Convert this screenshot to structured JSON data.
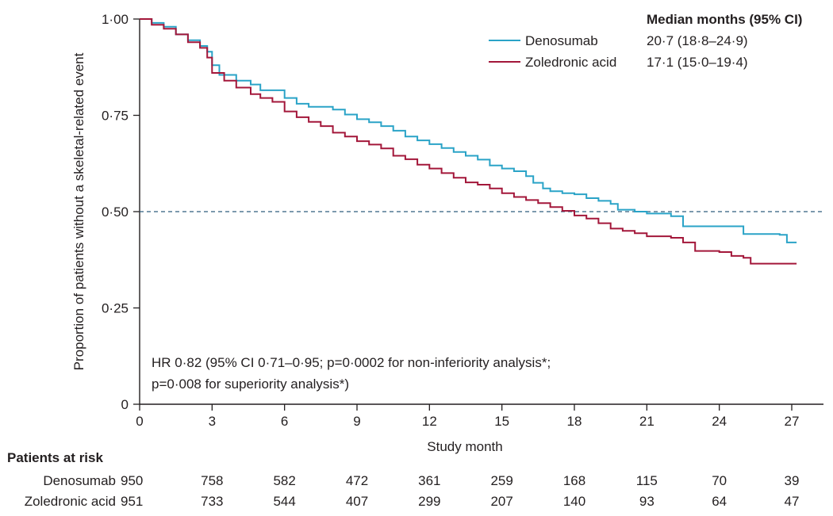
{
  "chart_data": {
    "type": "line",
    "subtype": "kaplan-meier",
    "xlabel": "Study month",
    "ylabel": "Proportion of patients without a skeletal-related event",
    "xlim": [
      0,
      28.2
    ],
    "ylim": [
      0,
      1.0
    ],
    "xticks": [
      0,
      3,
      6,
      9,
      12,
      15,
      18,
      21,
      24,
      27
    ],
    "yticks": [
      {
        "value": 0,
        "label": "0"
      },
      {
        "value": 0.25,
        "label": "0·25"
      },
      {
        "value": 0.5,
        "label": "0·50"
      },
      {
        "value": 0.75,
        "label": "0·75"
      },
      {
        "value": 1.0,
        "label": "1·00"
      }
    ],
    "reference_line": {
      "y": 0.5,
      "style": "dashed",
      "color": "#2e5e7e"
    },
    "legend_header": "Median months (95% CI)",
    "legend_position": "top-right",
    "series": [
      {
        "name": "Denosumab",
        "median": "20·7 (18·8–24·9)",
        "color": "#2aa3c7",
        "points": [
          [
            0,
            1.0
          ],
          [
            0.5,
            0.99
          ],
          [
            1,
            0.98
          ],
          [
            1.5,
            0.96
          ],
          [
            2,
            0.945
          ],
          [
            2.5,
            0.93
          ],
          [
            2.8,
            0.915
          ],
          [
            3.0,
            0.88
          ],
          [
            3.3,
            0.855
          ],
          [
            4,
            0.84
          ],
          [
            4.6,
            0.83
          ],
          [
            5,
            0.815
          ],
          [
            6,
            0.795
          ],
          [
            6.5,
            0.78
          ],
          [
            7,
            0.772
          ],
          [
            8,
            0.765
          ],
          [
            8.5,
            0.752
          ],
          [
            9,
            0.74
          ],
          [
            9.5,
            0.732
          ],
          [
            10,
            0.722
          ],
          [
            10.5,
            0.71
          ],
          [
            11,
            0.695
          ],
          [
            11.5,
            0.685
          ],
          [
            12,
            0.675
          ],
          [
            12.5,
            0.665
          ],
          [
            13,
            0.655
          ],
          [
            13.5,
            0.645
          ],
          [
            14,
            0.635
          ],
          [
            14.5,
            0.62
          ],
          [
            15,
            0.612
          ],
          [
            15.5,
            0.605
          ],
          [
            16,
            0.592
          ],
          [
            16.3,
            0.575
          ],
          [
            16.7,
            0.56
          ],
          [
            17,
            0.553
          ],
          [
            17.5,
            0.548
          ],
          [
            18,
            0.545
          ],
          [
            18.5,
            0.535
          ],
          [
            19,
            0.528
          ],
          [
            19.5,
            0.52
          ],
          [
            19.8,
            0.505
          ],
          [
            20.5,
            0.5
          ],
          [
            21,
            0.495
          ],
          [
            22,
            0.488
          ],
          [
            22.5,
            0.462
          ],
          [
            24,
            0.462
          ],
          [
            25,
            0.442
          ],
          [
            26.5,
            0.44
          ],
          [
            26.8,
            0.42
          ],
          [
            27.2,
            0.42
          ]
        ]
      },
      {
        "name": "Zoledronic acid",
        "median": "17·1 (15·0–19·4)",
        "color": "#a3173a",
        "points": [
          [
            0,
            1.0
          ],
          [
            0.5,
            0.985
          ],
          [
            1,
            0.975
          ],
          [
            1.5,
            0.96
          ],
          [
            2,
            0.94
          ],
          [
            2.5,
            0.925
          ],
          [
            2.8,
            0.9
          ],
          [
            3.0,
            0.86
          ],
          [
            3.5,
            0.84
          ],
          [
            4,
            0.822
          ],
          [
            4.6,
            0.805
          ],
          [
            5,
            0.795
          ],
          [
            5.5,
            0.785
          ],
          [
            6,
            0.76
          ],
          [
            6.5,
            0.745
          ],
          [
            7,
            0.733
          ],
          [
            7.5,
            0.722
          ],
          [
            8,
            0.705
          ],
          [
            8.5,
            0.695
          ],
          [
            9,
            0.683
          ],
          [
            9.5,
            0.674
          ],
          [
            10,
            0.664
          ],
          [
            10.5,
            0.645
          ],
          [
            11,
            0.636
          ],
          [
            11.5,
            0.622
          ],
          [
            12,
            0.612
          ],
          [
            12.5,
            0.6
          ],
          [
            13,
            0.588
          ],
          [
            13.5,
            0.576
          ],
          [
            14,
            0.57
          ],
          [
            14.5,
            0.56
          ],
          [
            15,
            0.548
          ],
          [
            15.5,
            0.538
          ],
          [
            16,
            0.53
          ],
          [
            16.5,
            0.522
          ],
          [
            17,
            0.512
          ],
          [
            17.5,
            0.502
          ],
          [
            18,
            0.49
          ],
          [
            18.5,
            0.482
          ],
          [
            19,
            0.47
          ],
          [
            19.5,
            0.456
          ],
          [
            20,
            0.45
          ],
          [
            20.5,
            0.444
          ],
          [
            21,
            0.436
          ],
          [
            22,
            0.432
          ],
          [
            22.5,
            0.42
          ],
          [
            23,
            0.398
          ],
          [
            24,
            0.395
          ],
          [
            24.5,
            0.385
          ],
          [
            25,
            0.38
          ],
          [
            25.3,
            0.365
          ],
          [
            26,
            0.365
          ],
          [
            27.2,
            0.365
          ]
        ]
      }
    ],
    "annotation": [
      "HR 0·82 (95% CI 0·71–0·95; p=0·0002 for non-inferiority analysis*;",
      "p=0·008 for superiority analysis*)"
    ],
    "risk_table": {
      "title": "Patients at risk",
      "rows": [
        {
          "label": "Denosumab",
          "values": [
            "950",
            "758",
            "582",
            "472",
            "361",
            "259",
            "168",
            "115",
            "70",
            "39"
          ]
        },
        {
          "label": "Zoledronic acid",
          "values": [
            "951",
            "733",
            "544",
            "407",
            "299",
            "207",
            "140",
            "93",
            "64",
            "47"
          ]
        }
      ]
    }
  }
}
